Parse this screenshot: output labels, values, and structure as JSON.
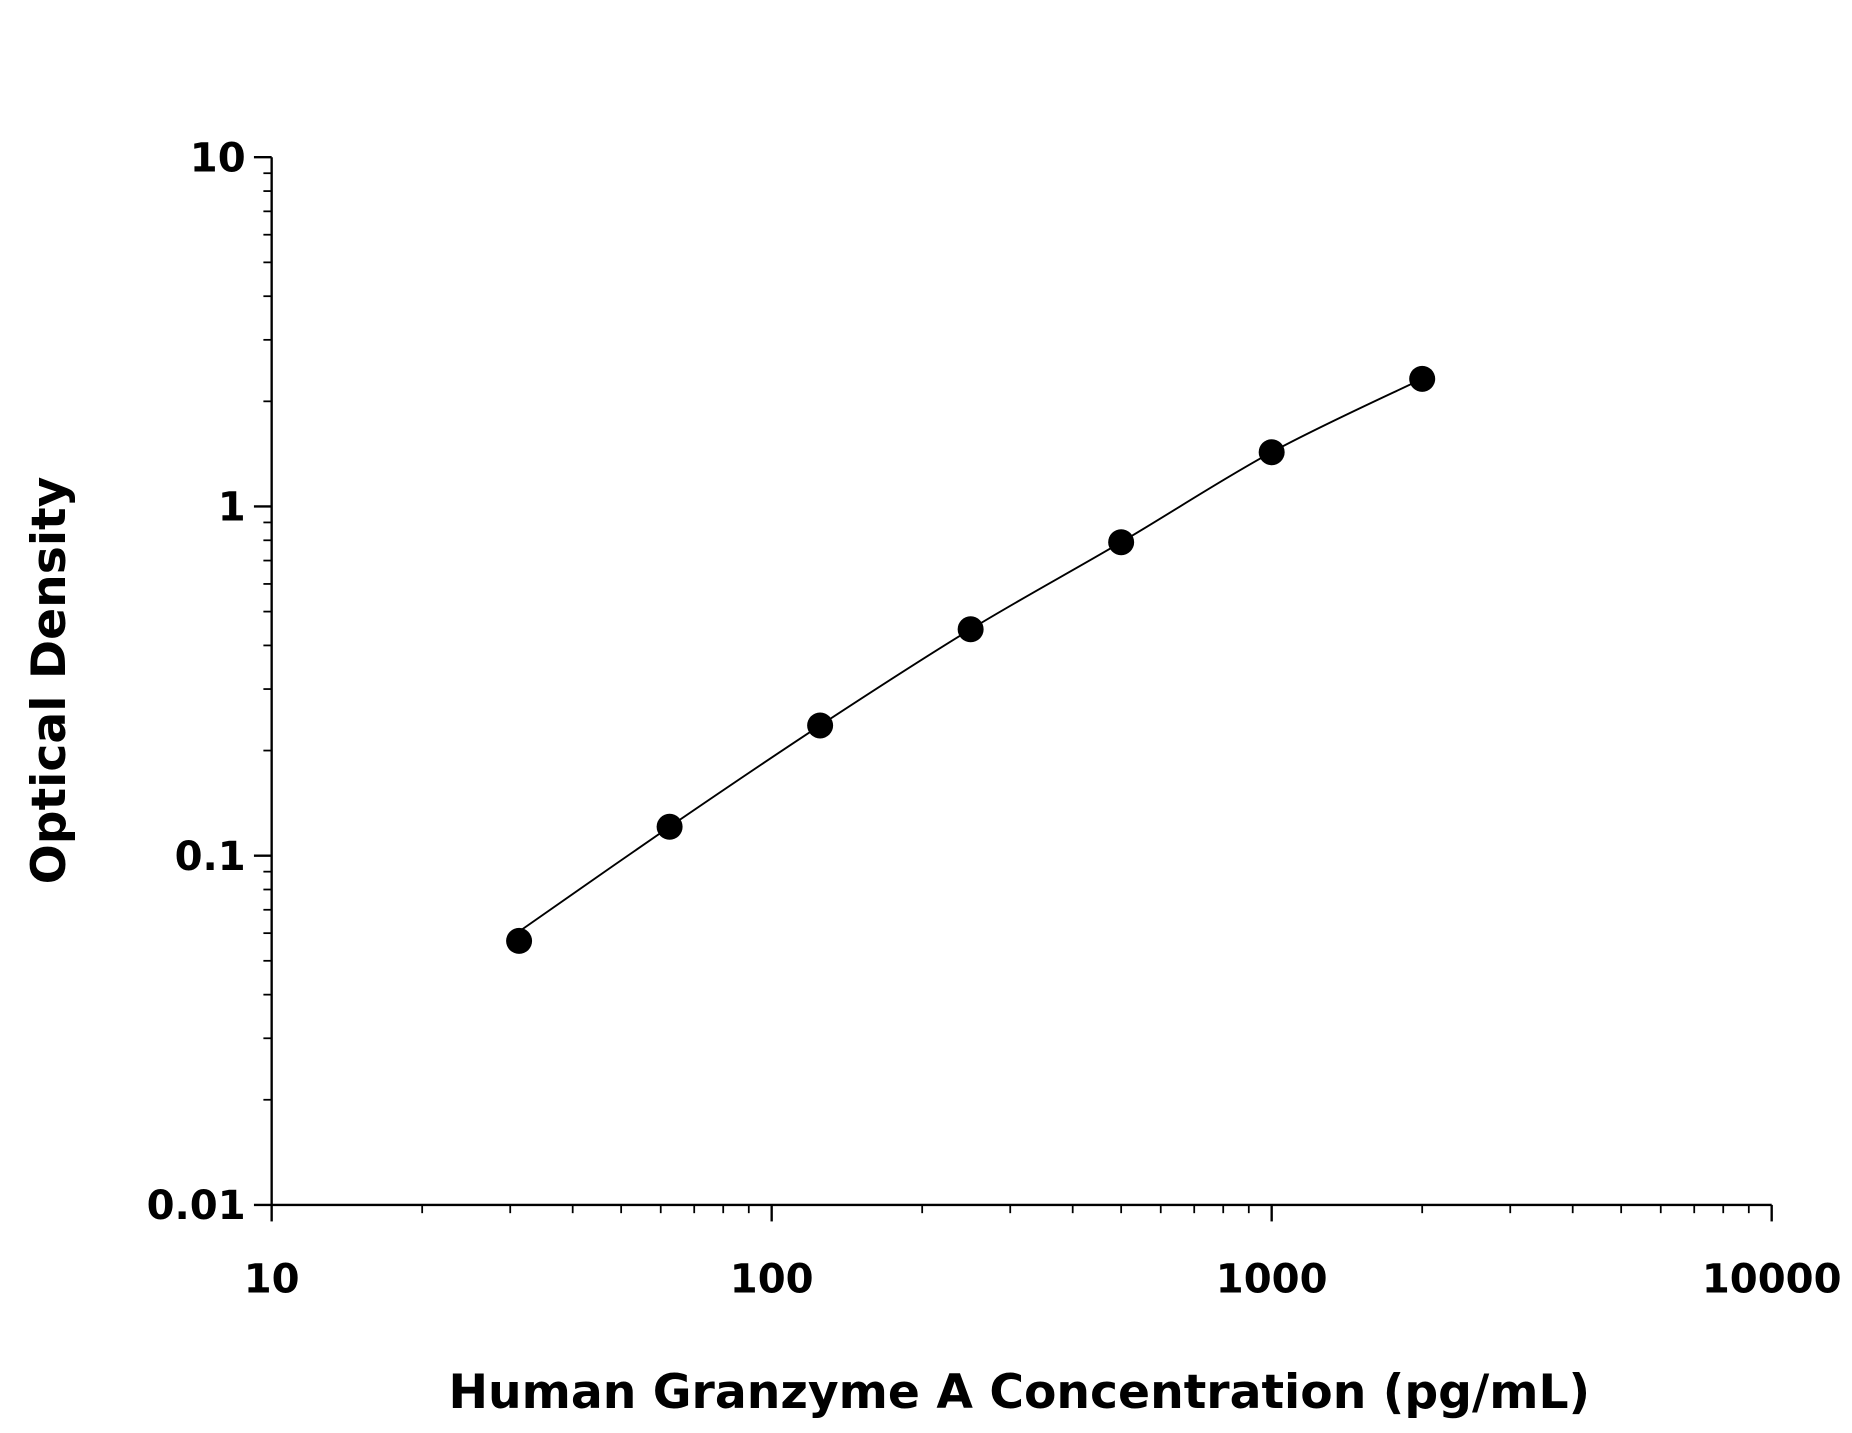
{
  "chart_data": {
    "type": "scatter",
    "title": "",
    "xlabel": "Human Granzyme A Concentration (pg/mL)",
    "ylabel": "Optical Density",
    "x_scale": "log",
    "y_scale": "log",
    "xlim": [
      10,
      10000
    ],
    "ylim": [
      0.01,
      10
    ],
    "x_ticks": [
      "10",
      "100",
      "1000",
      "10000"
    ],
    "y_ticks": [
      "0.01",
      "0.1",
      "1",
      "10"
    ],
    "grid": false,
    "series": [
      {
        "x": [
          31.25,
          62.5,
          125,
          250,
          500,
          1000,
          2000
        ],
        "y": [
          0.057,
          0.121,
          0.236,
          0.445,
          0.79,
          1.43,
          2.32
        ],
        "marker": "filled-circle",
        "fit_line": true,
        "color": "#000000"
      }
    ]
  }
}
